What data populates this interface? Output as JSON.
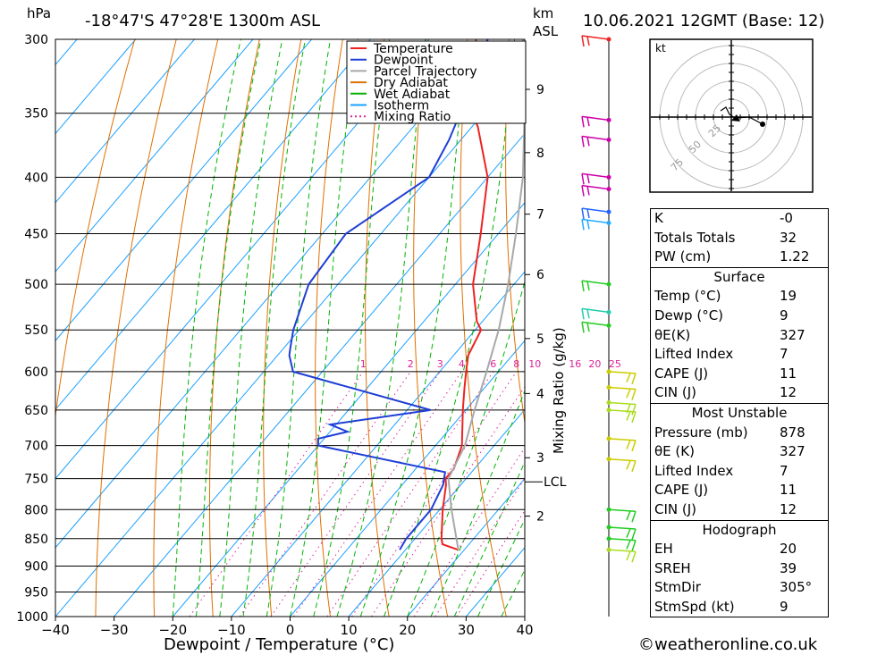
{
  "header": {
    "pressure_unit": "hPa",
    "location": "-18°47'S  47°28'E  1300m  ASL",
    "km_label": "km",
    "asl_label": "ASL",
    "datetime": "10.06.2021  12GMT  (Base: 12)"
  },
  "chart_data": {
    "type": "skew-t",
    "xlabel": "Dewpoint / Temperature (°C)",
    "ylabel_right": "Mixing Ratio (g/kg)",
    "pressure_levels": [
      300,
      350,
      400,
      450,
      500,
      550,
      600,
      650,
      700,
      750,
      800,
      850,
      900,
      950,
      1000
    ],
    "temperature_ticks": [
      -40,
      -30,
      -20,
      -10,
      0,
      10,
      20,
      30,
      40
    ],
    "xlim": [
      -40,
      40
    ],
    "ylim_hpa": [
      1000,
      300
    ],
    "height_ticks_km": [
      {
        "km": "2",
        "p": 811
      },
      {
        "km": "3",
        "p": 718
      },
      {
        "km": "4",
        "p": 628
      },
      {
        "km": "5",
        "p": 560
      },
      {
        "km": "6",
        "p": 490
      },
      {
        "km": "7",
        "p": 432
      },
      {
        "km": "8",
        "p": 380
      },
      {
        "km": "9",
        "p": 333
      }
    ],
    "lcl": {
      "label": "LCL",
      "p": 755
    },
    "mixing_ratio_labels": [
      "1",
      "2",
      "3",
      "4",
      "6",
      "8",
      "10",
      "16",
      "20",
      "25"
    ],
    "legend": [
      {
        "name": "Temperature",
        "color": "#ee2222",
        "style": "solid"
      },
      {
        "name": "Dewpoint",
        "color": "#1f3fd6",
        "style": "solid"
      },
      {
        "name": "Parcel Trajectory",
        "color": "#a8a8a8",
        "style": "solid"
      },
      {
        "name": "Dry Adiabat",
        "color": "#e07000",
        "style": "solid"
      },
      {
        "name": "Wet Adiabat",
        "color": "#00b400",
        "style": "solid"
      },
      {
        "name": "Isotherm",
        "color": "#1aa0ff",
        "style": "solid"
      },
      {
        "name": "Mixing Ratio",
        "color": "#dd2299",
        "style": "dotted"
      }
    ],
    "series": [
      {
        "name": "Temperature",
        "points": [
          [
            870,
            19
          ],
          [
            860,
            15.5
          ],
          [
            850,
            14.5
          ],
          [
            800,
            10.5
          ],
          [
            760,
            7.5
          ],
          [
            750,
            6.5
          ],
          [
            735,
            6.5
          ],
          [
            700,
            4.5
          ],
          [
            650,
            -0.5
          ],
          [
            620,
            -3.5
          ],
          [
            600,
            -5.5
          ],
          [
            580,
            -7.5
          ],
          [
            560,
            -8.5
          ],
          [
            550,
            -9
          ],
          [
            540,
            -11
          ],
          [
            500,
            -17
          ],
          [
            450,
            -23
          ],
          [
            400,
            -30
          ],
          [
            360,
            -39
          ],
          [
            340,
            -45
          ],
          [
            320,
            -48
          ],
          [
            300,
            -52
          ]
        ]
      },
      {
        "name": "Dewpoint",
        "points": [
          [
            870,
            9
          ],
          [
            850,
            8.5
          ],
          [
            800,
            8.5
          ],
          [
            760,
            7
          ],
          [
            740,
            5.5
          ],
          [
            700,
            -20
          ],
          [
            690,
            -21
          ],
          [
            680,
            -17
          ],
          [
            670,
            -21
          ],
          [
            650,
            -6
          ],
          [
            600,
            -35
          ],
          [
            580,
            -38
          ],
          [
            570,
            -39
          ],
          [
            550,
            -41
          ],
          [
            500,
            -45
          ],
          [
            450,
            -46
          ],
          [
            400,
            -40
          ],
          [
            370,
            -42
          ],
          [
            340,
            -45
          ],
          [
            320,
            -47
          ],
          [
            300,
            -50
          ]
        ]
      },
      {
        "name": "Parcel Trajectory",
        "points": [
          [
            870,
            19
          ],
          [
            800,
            12
          ],
          [
            750,
            7
          ],
          [
            700,
            5
          ],
          [
            650,
            1.5
          ],
          [
            600,
            -2
          ],
          [
            550,
            -6
          ],
          [
            500,
            -11
          ],
          [
            450,
            -17
          ],
          [
            400,
            -24
          ],
          [
            350,
            -33
          ],
          [
            300,
            -44
          ]
        ]
      }
    ],
    "wind_barbs": [
      {
        "p": 300,
        "color": "#ee2222"
      },
      {
        "p": 355,
        "color": "#cc00aa"
      },
      {
        "p": 370,
        "color": "#cc00aa"
      },
      {
        "p": 400,
        "color": "#cc00aa"
      },
      {
        "p": 410,
        "color": "#cc00aa"
      },
      {
        "p": 430,
        "color": "#2266ff"
      },
      {
        "p": 440,
        "color": "#22aaff"
      },
      {
        "p": 500,
        "color": "#22cc22"
      },
      {
        "p": 530,
        "color": "#22ccaa"
      },
      {
        "p": 545,
        "color": "#22cc22"
      },
      {
        "p": 600,
        "color": "#cccc00"
      },
      {
        "p": 620,
        "color": "#cccc00"
      },
      {
        "p": 640,
        "color": "#aadd22"
      },
      {
        "p": 650,
        "color": "#aadd22"
      },
      {
        "p": 690,
        "color": "#cccc00"
      },
      {
        "p": 720,
        "color": "#cccc00"
      },
      {
        "p": 800,
        "color": "#22cc22"
      },
      {
        "p": 830,
        "color": "#22cc22"
      },
      {
        "p": 850,
        "color": "#22cc22"
      },
      {
        "p": 870,
        "color": "#aadd22"
      }
    ]
  },
  "hodograph": {
    "unit": "kt",
    "ring_labels": [
      "25",
      "50",
      "75"
    ]
  },
  "stats": {
    "top": [
      {
        "k": "K",
        "v": "-0"
      },
      {
        "k": "Totals Totals",
        "v": "32"
      },
      {
        "k": "PW (cm)",
        "v": "1.22"
      }
    ],
    "surface": {
      "title": "Surface",
      "rows": [
        {
          "k": "Temp (°C)",
          "v": "19"
        },
        {
          "k": "Dewp (°C)",
          "v": "9"
        },
        {
          "k": "θE(K)",
          "v": "327"
        },
        {
          "k": "Lifted Index",
          "v": "7"
        },
        {
          "k": "CAPE (J)",
          "v": "11"
        },
        {
          "k": "CIN (J)",
          "v": "12"
        }
      ]
    },
    "most_unstable": {
      "title": "Most Unstable",
      "rows": [
        {
          "k": "Pressure (mb)",
          "v": "878"
        },
        {
          "k": "θE (K)",
          "v": "327"
        },
        {
          "k": "Lifted Index",
          "v": "7"
        },
        {
          "k": "CAPE (J)",
          "v": "11"
        },
        {
          "k": "CIN (J)",
          "v": "12"
        }
      ]
    },
    "hodograph_box": {
      "title": "Hodograph",
      "rows": [
        {
          "k": "EH",
          "v": "20"
        },
        {
          "k": "SREH",
          "v": "39"
        },
        {
          "k": "StmDir",
          "v": "305°"
        },
        {
          "k": "StmSpd (kt)",
          "v": "9"
        }
      ]
    }
  },
  "footer": {
    "copyright": "©weatheronline.co.uk"
  }
}
